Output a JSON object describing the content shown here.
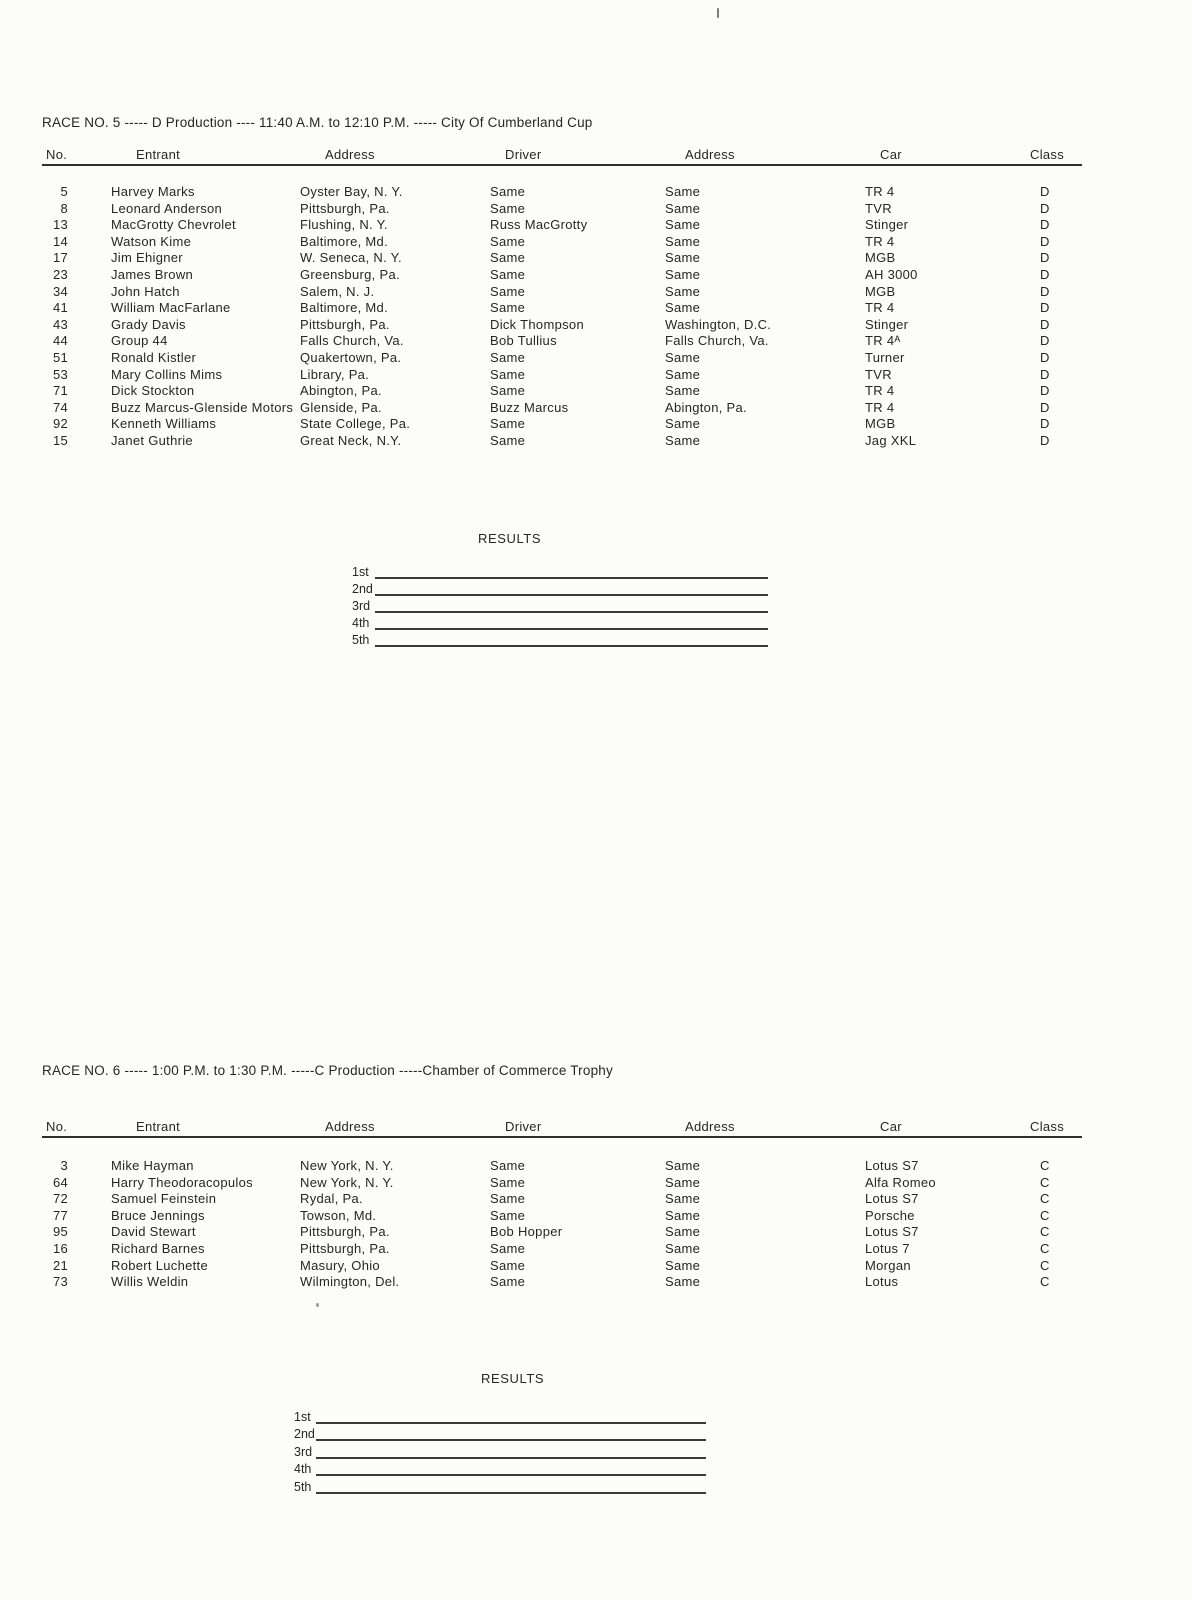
{
  "page": {
    "kind": "scanned race program entry lists",
    "paper_color": "#fcfcfa",
    "ink_color": "#262626"
  },
  "races": [
    {
      "title": "RACE NO. 5 ----- D Production ---- 11:40 A.M. to 12:10 P.M. ----- City Of Cumberland Cup",
      "columns": [
        "No.",
        "Entrant",
        "Address",
        "Driver",
        "Address",
        "Car",
        "Class"
      ],
      "rows": [
        [
          "5",
          "Harvey Marks",
          "Oyster Bay, N. Y.",
          "Same",
          "Same",
          "TR 4",
          "D"
        ],
        [
          "8",
          "Leonard Anderson",
          "Pittsburgh, Pa.",
          "Same",
          "Same",
          "TVR",
          "D"
        ],
        [
          "13",
          "MacGrotty Chevrolet",
          "Flushing, N. Y.",
          "Russ MacGrotty",
          "Same",
          "Stinger",
          "D"
        ],
        [
          "14",
          "Watson Kime",
          "Baltimore, Md.",
          "Same",
          "Same",
          "TR 4",
          "D"
        ],
        [
          "17",
          "Jim Ehigner",
          "W. Seneca, N. Y.",
          "Same",
          "Same",
          "MGB",
          "D"
        ],
        [
          "23",
          "James Brown",
          "Greensburg, Pa.",
          "Same",
          "Same",
          "AH 3000",
          "D"
        ],
        [
          "34",
          "John Hatch",
          "Salem, N. J.",
          "Same",
          "Same",
          "MGB",
          "D"
        ],
        [
          "41",
          "William MacFarlane",
          "Baltimore, Md.",
          "Same",
          "Same",
          "TR 4",
          "D"
        ],
        [
          "43",
          "Grady Davis",
          "Pittsburgh, Pa.",
          "Dick Thompson",
          "Washington, D.C.",
          "Stinger",
          "D"
        ],
        [
          "44",
          "Group 44",
          "Falls Church, Va.",
          "Bob Tullius",
          "Falls Church, Va.",
          "TR 4ᴬ",
          "D"
        ],
        [
          "51",
          "Ronald Kistler",
          "Quakertown, Pa.",
          "Same",
          "Same",
          "Turner",
          "D"
        ],
        [
          "53",
          "Mary Collins Mims",
          "Library, Pa.",
          "Same",
          "Same",
          "TVR",
          "D"
        ],
        [
          "71",
          "Dick Stockton",
          "Abington, Pa.",
          "Same",
          "Same",
          "TR 4",
          "D"
        ],
        [
          "74",
          "Buzz Marcus-Glenside Motors",
          "Glenside, Pa.",
          "Buzz Marcus",
          "Abington, Pa.",
          "TR 4",
          "D"
        ],
        [
          "92",
          "Kenneth Williams",
          "State College, Pa.",
          "Same",
          "Same",
          "MGB",
          "D"
        ],
        [
          "15",
          "Janet Guthrie",
          "Great Neck, N.Y.",
          "Same",
          "Same",
          "Jag XKL",
          "D"
        ]
      ],
      "results": {
        "title": "RESULTS",
        "places": [
          "1st",
          "2nd",
          "3rd",
          "4th",
          "5th"
        ]
      }
    },
    {
      "title": "RACE NO. 6 ----- 1:00 P.M. to 1:30 P.M. -----C Production -----Chamber of Commerce Trophy",
      "columns": [
        "No.",
        "Entrant",
        "Address",
        "Driver",
        "Address",
        "Car",
        "Class"
      ],
      "rows": [
        [
          "3",
          "Mike Hayman",
          "New York, N. Y.",
          "Same",
          "Same",
          "Lotus S7",
          "C"
        ],
        [
          "64",
          "Harry Theodoracopulos",
          "New York, N. Y.",
          "Same",
          "Same",
          "Alfa Romeo",
          "C"
        ],
        [
          "72",
          "Samuel Feinstein",
          "Rydal, Pa.",
          "Same",
          "Same",
          "Lotus S7",
          "C"
        ],
        [
          "77",
          "Bruce Jennings",
          "Towson, Md.",
          "Same",
          "Same",
          "Porsche",
          "C"
        ],
        [
          "95",
          "David Stewart",
          "Pittsburgh, Pa.",
          "Bob Hopper",
          "Same",
          "Lotus S7",
          "C"
        ],
        [
          "16",
          "Richard Barnes",
          "Pittsburgh, Pa.",
          "Same",
          "Same",
          "Lotus 7",
          "C"
        ],
        [
          "21",
          "Robert Luchette",
          "Masury, Ohio",
          "Same",
          "Same",
          "Morgan",
          "C"
        ],
        [
          "73",
          "Willis Weldin",
          "Wilmington, Del.",
          "Same",
          "Same",
          "Lotus",
          "C"
        ]
      ],
      "results": {
        "title": "RESULTS",
        "places": [
          "1st",
          "2nd",
          "3rd",
          "4th",
          "5th"
        ]
      }
    }
  ]
}
